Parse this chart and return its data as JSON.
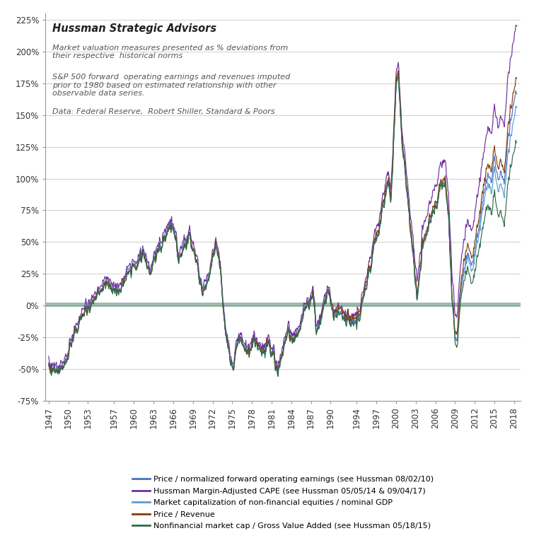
{
  "title": "Hussman Strategic Advisors",
  "subtitle1": "Market valuation measures presented as % deviations from\ntheir respective  historical norms",
  "subtitle2": "S&P 500 forward  operating earnings and revenues imputed\nprior to 1980 based on estimated relationship with other\nobservable data series.",
  "subtitle3": "Data: Federal Reserve,  Robert Shiller, Standard & Poors",
  "ylim_bottom": -0.75,
  "ylim_top": 2.3,
  "ytick_vals": [
    -0.75,
    -0.5,
    -0.25,
    0.0,
    0.25,
    0.5,
    0.75,
    1.0,
    1.25,
    1.5,
    1.75,
    2.0,
    2.25
  ],
  "ytick_labels": [
    "-75%",
    "-50%",
    "-25%",
    "0%",
    "25%",
    "50%",
    "75%",
    "100%",
    "125%",
    "150%",
    "175%",
    "200%",
    "225%"
  ],
  "xtick_years": [
    1947,
    1950,
    1953,
    1957,
    1960,
    1963,
    1966,
    1969,
    1972,
    1975,
    1978,
    1981,
    1984,
    1987,
    1990,
    1994,
    1997,
    2000,
    2003,
    2006,
    2009,
    2012,
    2015,
    2018
  ],
  "zero_band_color": "#3d7a5c",
  "zero_band_alpha": 0.5,
  "background_color": "#ffffff",
  "line_colors": {
    "forward_pe": "#4472c4",
    "cape": "#7030a0",
    "mktcap_gdp": "#5b9bd5",
    "price_rev": "#843c0c",
    "nonfin_gva": "#2e6b47"
  },
  "line_width": 0.85,
  "legend_labels": [
    "Price / normalized forward operating earnings (see Hussman 08/02/10)",
    "Hussman Margin-Adjusted CAPE (see Hussman 05/05/14 & 09/04/17)",
    "Market capitalization of non-financial equities / nominal GDP",
    "Price / Revenue",
    "Nonfinancial market cap / Gross Value Added (see Hussman 05/18/15)"
  ],
  "grid_color": "#c8c8c8",
  "title_fontsize": 10.5,
  "subtitle_fontsize": 8,
  "tick_fontsize": 8.5,
  "legend_fontsize": 8
}
